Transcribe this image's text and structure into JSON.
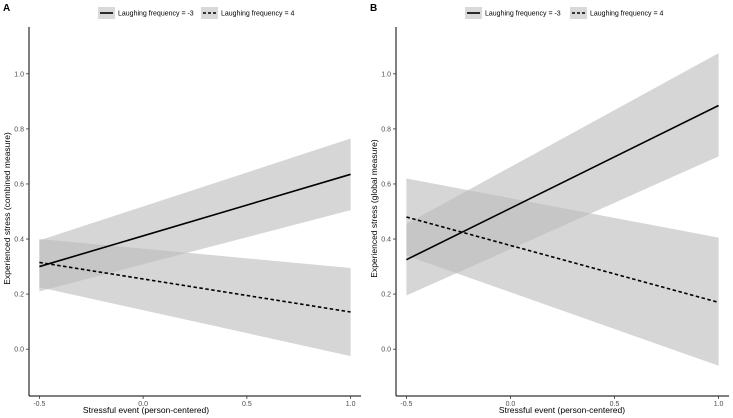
{
  "figure": {
    "panels": [
      {
        "letter": "A"
      },
      {
        "letter": "B"
      }
    ]
  },
  "chart_data": [
    {
      "type": "line",
      "panel": "A",
      "xlabel": "Stressful event (person-centered)",
      "ylabel": "Experienced stress (combined measure)",
      "xlim": [
        -0.55,
        1.05
      ],
      "ylim": [
        -0.17,
        1.17
      ],
      "xticks": [
        -0.5,
        0.0,
        0.5,
        1.0
      ],
      "xtick_labels": [
        "-0.5",
        "0.0",
        "0.5",
        "1.0"
      ],
      "yticks": [
        0.0,
        0.2,
        0.4,
        0.6,
        0.8,
        1.0
      ],
      "ytick_labels": [
        "0.0",
        "0.2",
        "0.4",
        "0.6",
        "0.8",
        "1.0"
      ],
      "legend_position": "top",
      "series": [
        {
          "name": "Laughing frequency = -3",
          "style": "solid",
          "x": [
            -0.5,
            1.0
          ],
          "y": [
            0.3,
            0.635
          ],
          "ci_lower": [
            0.21,
            0.505
          ],
          "ci_upper": [
            0.395,
            0.765
          ]
        },
        {
          "name": "Laughing frequency = 4",
          "style": "dashed",
          "x": [
            -0.5,
            1.0
          ],
          "y": [
            0.315,
            0.135
          ],
          "ci_lower": [
            0.225,
            -0.025
          ],
          "ci_upper": [
            0.4,
            0.295
          ]
        }
      ]
    },
    {
      "type": "line",
      "panel": "B",
      "xlabel": "Stressful event (person-centered)",
      "ylabel": "Experienced stress (global measure)",
      "xlim": [
        -0.55,
        1.05
      ],
      "ylim": [
        -0.17,
        1.17
      ],
      "xticks": [
        -0.5,
        0.0,
        0.5,
        1.0
      ],
      "xtick_labels": [
        "-0.5",
        "0.0",
        "0.5",
        "1.0"
      ],
      "yticks": [
        0.0,
        0.2,
        0.4,
        0.6,
        0.8,
        1.0
      ],
      "ytick_labels": [
        "0.0",
        "0.2",
        "0.4",
        "0.6",
        "0.8",
        "1.0"
      ],
      "legend_position": "top",
      "series": [
        {
          "name": "Laughing frequency = -3",
          "style": "solid",
          "x": [
            -0.5,
            1.0
          ],
          "y": [
            0.325,
            0.885
          ],
          "ci_lower": [
            0.195,
            0.7
          ],
          "ci_upper": [
            0.455,
            1.075
          ]
        },
        {
          "name": "Laughing frequency = 4",
          "style": "dashed",
          "x": [
            -0.5,
            1.0
          ],
          "y": [
            0.48,
            0.17
          ],
          "ci_lower": [
            0.34,
            -0.06
          ],
          "ci_upper": [
            0.62,
            0.405
          ]
        }
      ]
    }
  ],
  "colors": {
    "ribbon": "#bdbdbd",
    "line": "#000000",
    "axis": "#000000",
    "tick_text": "#4d4d4d",
    "legend_key_bg": "#d9d9d9"
  }
}
